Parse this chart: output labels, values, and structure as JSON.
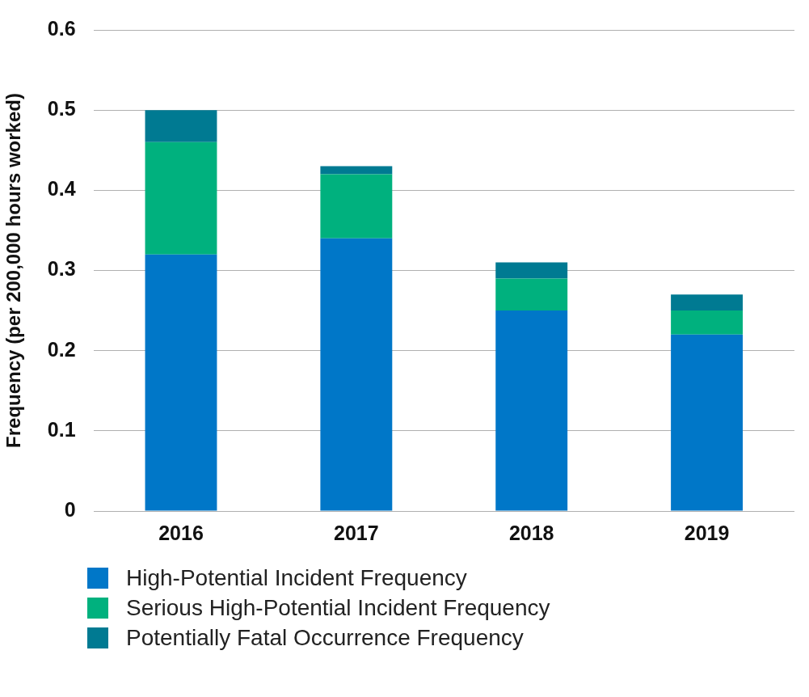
{
  "chart_data": {
    "type": "bar",
    "stacked": true,
    "ylabel": "Frequency (per 200,000 hours worked)",
    "categories": [
      "2016",
      "2017",
      "2018",
      "2019"
    ],
    "series": [
      {
        "name": "High-Potential Incident Frequency",
        "color": "#0077c8",
        "values": [
          0.32,
          0.34,
          0.25,
          0.22
        ]
      },
      {
        "name": "Serious High-Potential Incident Frequency",
        "color": "#00b17e",
        "values": [
          0.14,
          0.08,
          0.04,
          0.03
        ]
      },
      {
        "name": "Potentially Fatal Occurrence Frequency",
        "color": "#007a92",
        "values": [
          0.04,
          0.01,
          0.02,
          0.02
        ]
      }
    ],
    "ylim": [
      0,
      0.6
    ],
    "yticks": [
      0,
      0.1,
      0.2,
      0.3,
      0.4,
      0.5,
      0.6
    ],
    "grid": "y",
    "legend": "bottom"
  }
}
